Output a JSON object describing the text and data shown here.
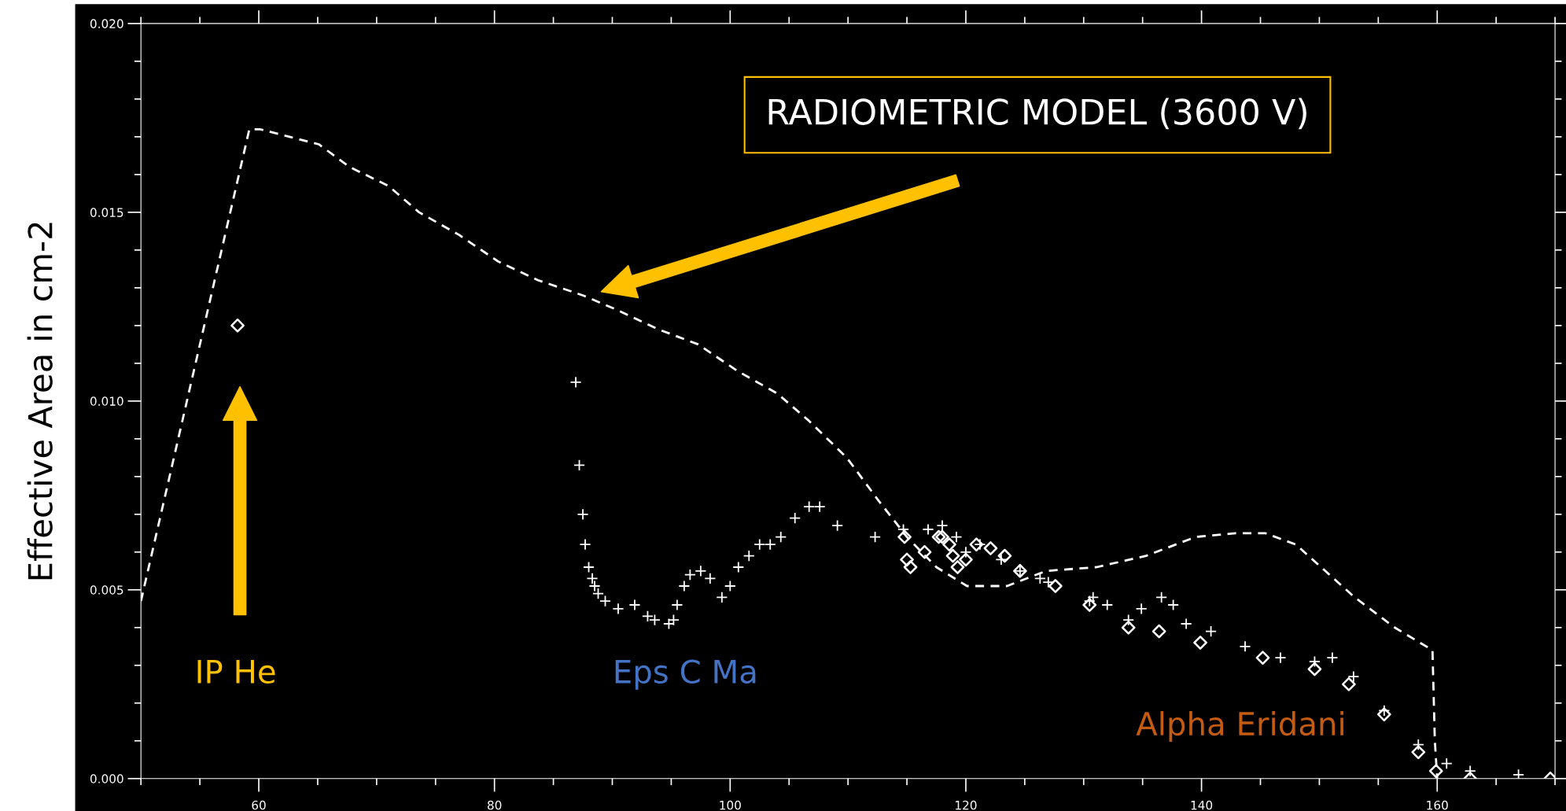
{
  "chart_data": {
    "type": "scatter",
    "ylabel": "Effective Area in cm-2",
    "xlim": [
      50,
      170
    ],
    "xticks": [
      60,
      80,
      100,
      120,
      140,
      160
    ],
    "ylim": [
      0,
      0.02
    ],
    "yticks": [
      {
        "value": 0,
        "label": "0.000"
      },
      {
        "value": 0.005,
        "label": "0.005"
      },
      {
        "value": 0.01,
        "label": "0.010"
      },
      {
        "value": 0.015,
        "label": "0.015"
      },
      {
        "value": 0.02,
        "label": "0.020"
      }
    ],
    "grid": false,
    "legend": false,
    "series": [
      {
        "type": "line",
        "line_style": "dashed",
        "marker": "none",
        "color": "#ffffff",
        "x": [
          50,
          59.2,
          60.1,
          62.6,
          65.1,
          67.7,
          71,
          73.6,
          77,
          80.3,
          83.7,
          87.5,
          90.5,
          93.9,
          97.3,
          100.6,
          104,
          106.6,
          109.9,
          112.5,
          115,
          117.5,
          120.1,
          123.5,
          126.8,
          131.1,
          135.3,
          139.5,
          142.9,
          145.4,
          148,
          150.5,
          153,
          156.4,
          159.6,
          159.8,
          160
        ],
        "values": [
          0.0047,
          0.0172,
          0.0172,
          0.017,
          0.0168,
          0.0162,
          0.0157,
          0.015,
          0.0144,
          0.0137,
          0.0132,
          0.0128,
          0.0124,
          0.0119,
          0.0115,
          0.0108,
          0.0102,
          0.0095,
          0.0085,
          0.0074,
          0.0064,
          0.0056,
          0.0051,
          0.0051,
          0.0055,
          0.0056,
          0.0059,
          0.0064,
          0.0065,
          0.0065,
          0.0062,
          0.0055,
          0.0048,
          0.004,
          0.0034,
          0.001,
          0.0
        ]
      },
      {
        "type": "scatter",
        "marker": "cross",
        "color": "#ffffff",
        "x": [
          86.9,
          87.2,
          87.5,
          87.7,
          88,
          88.3,
          88.5,
          88.8,
          89.4,
          90.5,
          91.9,
          93,
          93.6,
          94.8,
          95.2,
          95.5,
          96.1,
          96.6,
          97.5,
          98.3,
          99.3,
          100,
          100.7,
          101.6,
          102.5,
          103.4,
          104.3,
          105.5,
          106.7,
          107.6,
          109.1,
          112.3,
          114.7,
          116.8,
          118,
          119.2,
          120,
          121.2,
          123,
          124.6,
          126.3,
          127,
          130.5,
          130.8,
          132,
          133.8,
          134.9,
          136.6,
          137.6,
          138.7,
          140.8,
          143.7,
          146.7,
          149.6,
          151.1,
          152.9,
          155.5,
          158.4,
          160.8,
          162.8,
          166.9
        ],
        "values": [
          0.0105,
          0.0083,
          0.007,
          0.0062,
          0.0056,
          0.0053,
          0.0051,
          0.0049,
          0.0047,
          0.0045,
          0.0046,
          0.0043,
          0.0042,
          0.0041,
          0.0042,
          0.0046,
          0.0051,
          0.0054,
          0.0055,
          0.0053,
          0.0048,
          0.0051,
          0.0056,
          0.0059,
          0.0062,
          0.0062,
          0.0064,
          0.0069,
          0.0072,
          0.0072,
          0.0067,
          0.0064,
          0.0066,
          0.0066,
          0.0067,
          0.0064,
          0.006,
          0.0062,
          0.0058,
          0.0055,
          0.0053,
          0.0052,
          0.0047,
          0.0048,
          0.0046,
          0.0042,
          0.0045,
          0.0048,
          0.0046,
          0.0041,
          0.0039,
          0.0035,
          0.0032,
          0.0031,
          0.0032,
          0.0027,
          0.0018,
          0.0009,
          0.0004,
          0.0002,
          0.0001
        ]
      },
      {
        "type": "scatter",
        "marker": "diamond",
        "color": "#ffffff",
        "x": [
          114.8,
          115,
          115.3,
          116.5,
          117.7,
          118,
          118.6,
          118.9,
          119.3,
          120,
          120.9,
          122.1,
          123.3,
          124.6,
          127.6,
          130.5,
          133.8,
          136.4,
          139.9,
          145.2,
          149.6,
          152.5,
          155.5,
          158.4,
          159.9,
          162.8,
          169.6
        ],
        "values": [
          0.0064,
          0.0058,
          0.0056,
          0.006,
          0.0064,
          0.0064,
          0.0062,
          0.0059,
          0.0056,
          0.0058,
          0.0062,
          0.0061,
          0.0059,
          0.0055,
          0.0051,
          0.0046,
          0.004,
          0.0039,
          0.0036,
          0.0032,
          0.0029,
          0.0025,
          0.0017,
          0.0007,
          0.0002,
          0.0,
          0.0
        ]
      },
      {
        "marker": "diamond",
        "color": "#ffffff",
        "x": [
          58.2
        ],
        "values": [
          0.012
        ]
      }
    ],
    "annotations": [
      "RADIOMETRIC MODEL (3600 V)",
      "IP He",
      "Eps C Ma",
      "Alpha Eridani"
    ]
  }
}
